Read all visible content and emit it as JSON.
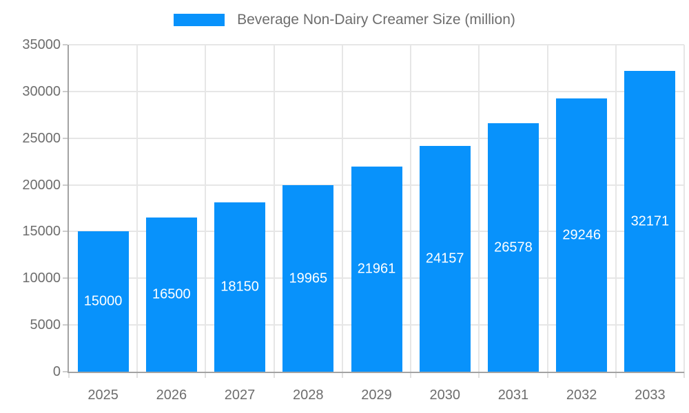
{
  "legend": {
    "label": "Beverage Non-Dairy Creamer Size (million)"
  },
  "chart_data": {
    "type": "bar",
    "title": "Beverage Non-Dairy Creamer Size (million)",
    "categories": [
      "2025",
      "2026",
      "2027",
      "2028",
      "2029",
      "2030",
      "2031",
      "2032",
      "2033"
    ],
    "values": [
      15000,
      16500,
      18150,
      19965,
      21961,
      24157,
      26578,
      29246,
      32171
    ],
    "value_labels": [
      "15000",
      "16500",
      "18150",
      "19965",
      "21961",
      "24157",
      "26578",
      "29246",
      "32171"
    ],
    "xlabel": "",
    "ylabel": "",
    "ylim": [
      0,
      35000
    ],
    "yticks": [
      0,
      5000,
      10000,
      15000,
      20000,
      25000,
      30000,
      35000
    ],
    "ytick_labels": [
      "0",
      "5000",
      "10000",
      "15000",
      "20000",
      "25000",
      "30000",
      "35000"
    ],
    "grid": true,
    "legend_position": "top",
    "colors": {
      "bar": "#0892fb",
      "grid": "#e6e6e6",
      "axis": "#a3a3a3",
      "tick": "#cccccc",
      "x_tick": "#e0e0e0",
      "text": "#6d6d6d",
      "value_label": "#ffffff",
      "background": "#ffffff"
    }
  }
}
